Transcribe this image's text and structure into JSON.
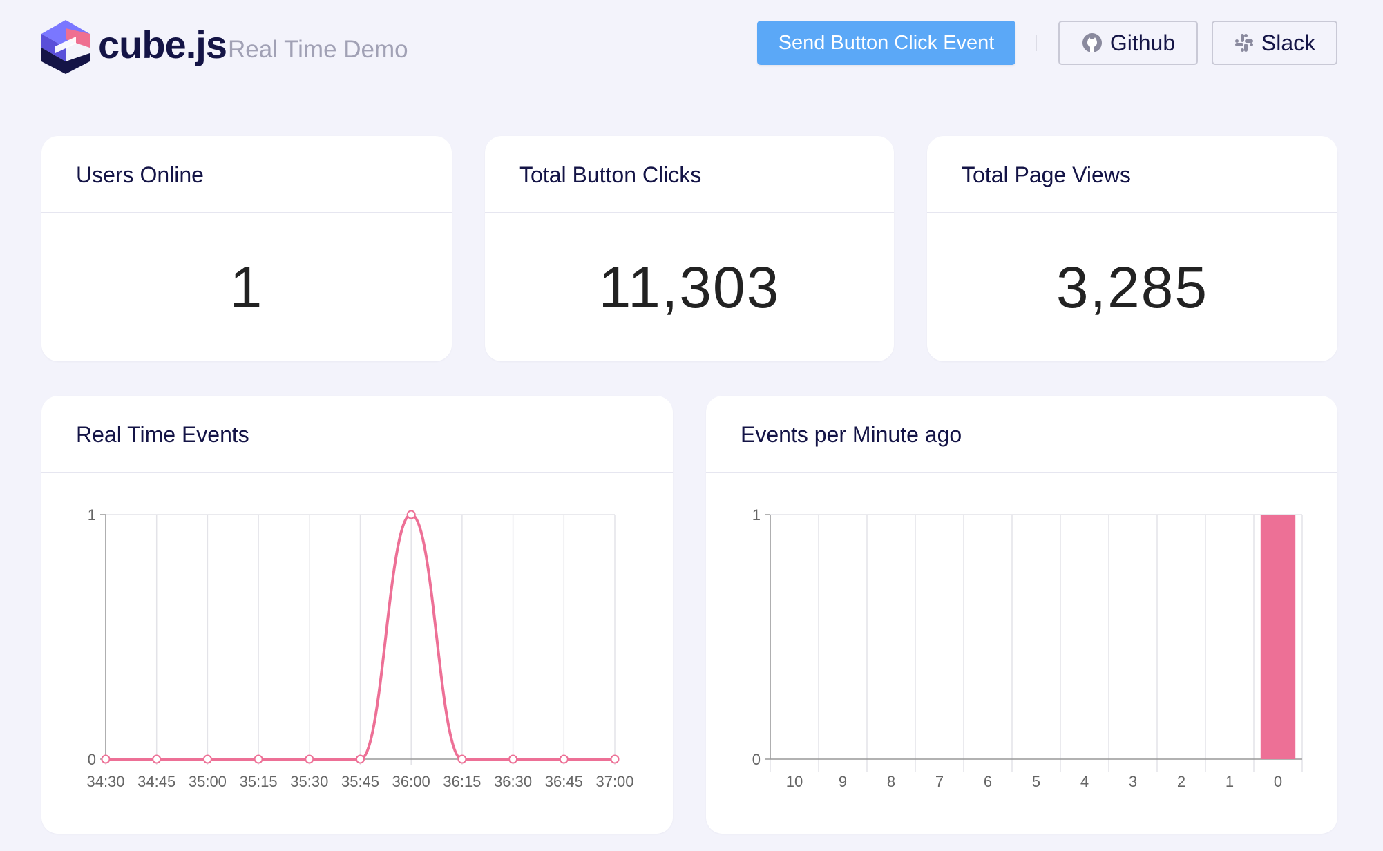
{
  "header": {
    "brand": "cube.js",
    "subtitle": "Real Time Demo",
    "send_button_label": "Send Button Click Event",
    "github_label": "Github",
    "slack_label": "Slack"
  },
  "colors": {
    "accent": "#5ba8f7",
    "series": "#ed7096",
    "logo_pink": "#ef6f91",
    "logo_purple": "#7a77ff",
    "logo_navy": "#141446"
  },
  "metrics": [
    {
      "title": "Users Online",
      "value": "1"
    },
    {
      "title": "Total Button Clicks",
      "value": "11,303"
    },
    {
      "title": "Total Page Views",
      "value": "3,285"
    }
  ],
  "charts": {
    "realtime": {
      "title": "Real Time Events"
    },
    "per_minute": {
      "title": "Events per Minute ago"
    }
  },
  "chart_data": [
    {
      "type": "line",
      "title": "Real Time Events",
      "x": [
        "34:30",
        "34:45",
        "35:00",
        "35:15",
        "35:30",
        "35:45",
        "36:00",
        "36:15",
        "36:30",
        "36:45",
        "37:00"
      ],
      "values": [
        0,
        0,
        0,
        0,
        0,
        0,
        1,
        0,
        0,
        0,
        0
      ],
      "ylim": [
        0,
        1
      ],
      "yticks": [
        "0",
        "1"
      ],
      "grid": true,
      "color": "#ed7096"
    },
    {
      "type": "bar",
      "title": "Events per Minute ago",
      "categories": [
        "10",
        "9",
        "8",
        "7",
        "6",
        "5",
        "4",
        "3",
        "2",
        "1",
        "0"
      ],
      "values": [
        0,
        0,
        0,
        0,
        0,
        0,
        0,
        0,
        0,
        0,
        1
      ],
      "ylim": [
        0,
        1
      ],
      "yticks": [
        "0",
        "1"
      ],
      "grid": true,
      "color": "#ed7096"
    }
  ]
}
